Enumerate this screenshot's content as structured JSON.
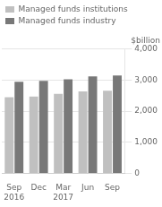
{
  "chart_data": {
    "type": "bar",
    "ylabel": "$billion",
    "categories": [
      "Sep\n2016",
      "Dec",
      "Mar\n2017",
      "Jun",
      "Sep"
    ],
    "series": [
      {
        "name": "Managed funds institutions",
        "color": "#c0c0c0",
        "values": [
          2450,
          2470,
          2560,
          2640,
          2660
        ]
      },
      {
        "name": "Managed funds industry",
        "color": "#787878",
        "values": [
          2950,
          2980,
          3030,
          3120,
          3150
        ]
      }
    ],
    "ylim": [
      0,
      4000
    ],
    "yticks": [
      0,
      {
        "value": 1000,
        "label": "1,000"
      },
      {
        "value": 2000,
        "label": "2,000"
      },
      {
        "value": 3000,
        "label": "3,000"
      },
      {
        "value": 4000,
        "label": "4,000"
      }
    ],
    "grid": true,
    "legend": "upper left"
  }
}
